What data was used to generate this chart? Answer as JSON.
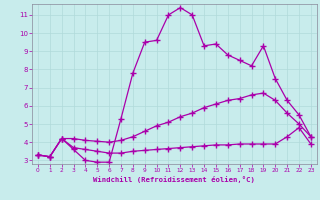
{
  "xlabel": "Windchill (Refroidissement éolien,°C)",
  "bg_color": "#c8ecec",
  "line_color": "#aa00aa",
  "grid_color": "#b0dada",
  "axis_color": "#888899",
  "xlim": [
    -0.5,
    23.5
  ],
  "ylim": [
    2.8,
    11.6
  ],
  "xticks": [
    0,
    1,
    2,
    3,
    4,
    5,
    6,
    7,
    8,
    9,
    10,
    11,
    12,
    13,
    14,
    15,
    16,
    17,
    18,
    19,
    20,
    21,
    22,
    23
  ],
  "yticks": [
    3,
    4,
    5,
    6,
    7,
    8,
    9,
    10,
    11
  ],
  "line1_x": [
    0,
    1,
    2,
    3,
    4,
    5,
    6,
    7,
    8,
    9,
    10,
    11,
    12,
    13,
    14,
    15,
    16,
    17,
    18,
    19,
    20,
    21,
    22,
    23
  ],
  "line1_y": [
    3.3,
    3.2,
    4.2,
    3.6,
    3.0,
    2.9,
    2.9,
    5.3,
    7.8,
    9.5,
    9.6,
    11.0,
    11.4,
    11.0,
    9.3,
    9.4,
    8.8,
    8.5,
    8.2,
    9.3,
    7.5,
    6.3,
    5.5,
    4.3
  ],
  "line2_x": [
    0,
    1,
    2,
    3,
    4,
    5,
    6,
    7,
    8,
    9,
    10,
    11,
    12,
    13,
    14,
    15,
    16,
    17,
    18,
    19,
    20,
    21,
    22,
    23
  ],
  "line2_y": [
    3.3,
    3.2,
    4.2,
    4.2,
    4.1,
    4.05,
    4.0,
    4.1,
    4.3,
    4.6,
    4.9,
    5.1,
    5.4,
    5.6,
    5.9,
    6.1,
    6.3,
    6.4,
    6.6,
    6.7,
    6.3,
    5.6,
    5.0,
    4.3
  ],
  "line3_x": [
    0,
    1,
    2,
    3,
    4,
    5,
    6,
    7,
    8,
    9,
    10,
    11,
    12,
    13,
    14,
    15,
    16,
    17,
    18,
    19,
    20,
    21,
    22,
    23
  ],
  "line3_y": [
    3.3,
    3.2,
    4.2,
    3.7,
    3.6,
    3.5,
    3.4,
    3.4,
    3.5,
    3.55,
    3.6,
    3.65,
    3.7,
    3.75,
    3.8,
    3.85,
    3.85,
    3.9,
    3.9,
    3.9,
    3.9,
    4.3,
    4.8,
    3.9
  ]
}
